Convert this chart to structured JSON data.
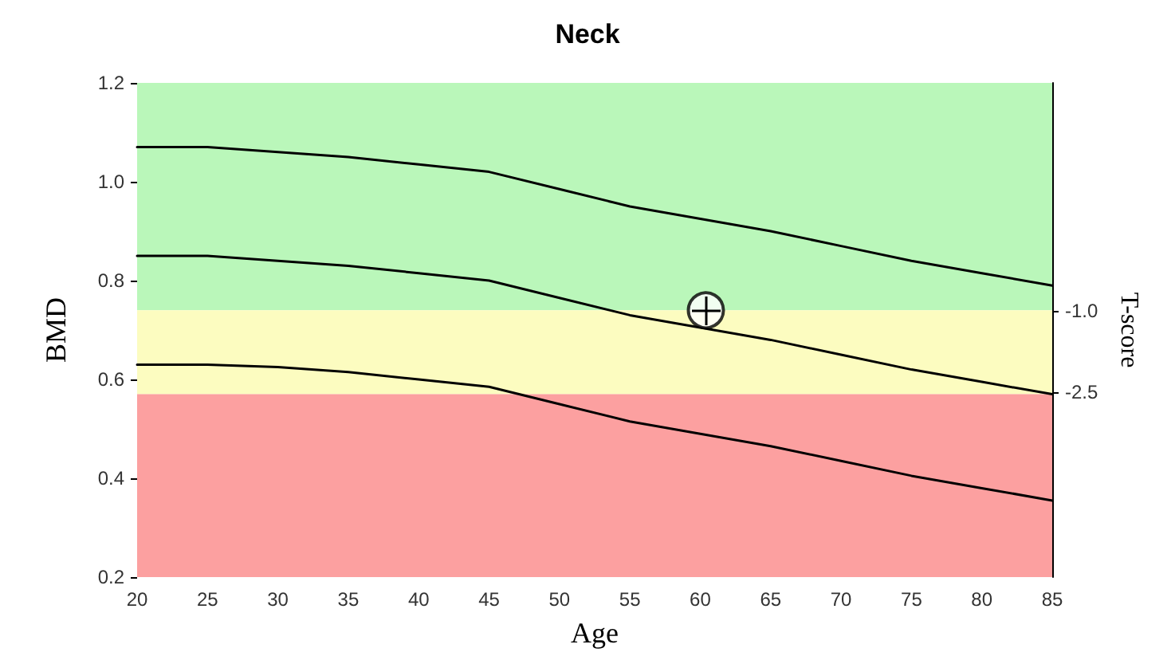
{
  "chart_data": {
    "type": "line",
    "title": "Neck",
    "xlabel": "Age",
    "ylabel": "BMD",
    "y2label": "T-score",
    "xlim": [
      20,
      85
    ],
    "xticks": [
      20,
      25,
      30,
      35,
      40,
      45,
      50,
      55,
      60,
      65,
      70,
      75,
      80,
      85
    ],
    "ylim": [
      0.2,
      1.2
    ],
    "yticks": [
      0.2,
      0.4,
      0.6,
      0.8,
      {
        "value": 1,
        "label": "1.0"
      },
      1.2
    ],
    "y2lim": [
      -5.9,
      3.2
    ],
    "y2ticks": [
      {
        "value": -1,
        "label": "-1.0"
      },
      -2.5
    ],
    "grid": false,
    "line_style": "solid",
    "bands": [
      {
        "axis": "y",
        "from": 0.74,
        "to": 1.2,
        "color": "#baf7ba"
      },
      {
        "axis": "y",
        "from": 0.57,
        "to": 0.74,
        "color": "#fcfcc0"
      },
      {
        "axis": "y",
        "from": 0.2,
        "to": 0.57,
        "color": "#fca0a0"
      }
    ],
    "series": [
      {
        "color": "#000000",
        "x": [
          20,
          25,
          30,
          35,
          40,
          45,
          50,
          55,
          60,
          65,
          70,
          75,
          80,
          85
        ],
        "values": [
          1.07,
          1.07,
          1.06,
          1.05,
          1.035,
          1.02,
          0.985,
          0.95,
          0.925,
          0.9,
          0.87,
          0.84,
          0.815,
          0.79
        ]
      },
      {
        "color": "#000000",
        "x": [
          20,
          25,
          30,
          35,
          40,
          45,
          50,
          55,
          60,
          65,
          70,
          75,
          80,
          85
        ],
        "values": [
          0.85,
          0.85,
          0.84,
          0.83,
          0.815,
          0.8,
          0.765,
          0.73,
          0.705,
          0.68,
          0.65,
          0.62,
          0.595,
          0.57
        ]
      },
      {
        "color": "#000000",
        "x": [
          20,
          25,
          30,
          35,
          40,
          45,
          50,
          55,
          60,
          65,
          70,
          75,
          80,
          85
        ],
        "values": [
          0.63,
          0.63,
          0.625,
          0.615,
          0.6,
          0.585,
          0.55,
          0.515,
          0.49,
          0.465,
          0.435,
          0.405,
          0.38,
          0.355
        ]
      },
      {
        "type": "scatter",
        "color": "#000000",
        "x": [
          60.4
        ],
        "values": [
          0.74
        ]
      }
    ]
  }
}
